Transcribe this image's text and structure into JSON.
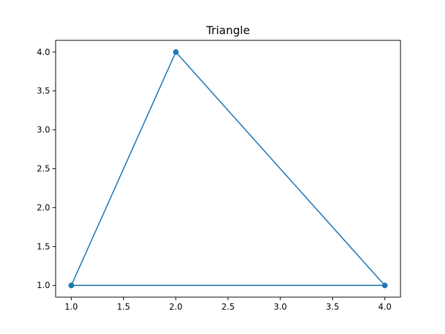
{
  "chart_data": {
    "type": "line",
    "title": "Triangle",
    "xlabel": "",
    "ylabel": "",
    "xlim": [
      0.85,
      4.15
    ],
    "ylim": [
      0.85,
      4.15
    ],
    "xticks": [
      1.0,
      1.5,
      2.0,
      2.5,
      3.0,
      3.5,
      4.0
    ],
    "yticks": [
      1.0,
      1.5,
      2.0,
      2.5,
      3.0,
      3.5,
      4.0
    ],
    "xtick_labels": [
      "1.0",
      "1.5",
      "2.0",
      "2.5",
      "3.0",
      "3.5",
      "4.0"
    ],
    "ytick_labels": [
      "1.0",
      "1.5",
      "2.0",
      "2.5",
      "3.0",
      "3.5",
      "4.0"
    ],
    "grid": false,
    "legend": "none",
    "series": [
      {
        "color": "#1f77b4",
        "marker": "circle",
        "x": [
          1,
          2,
          4,
          1
        ],
        "y": [
          1,
          4,
          1,
          1
        ]
      }
    ]
  }
}
